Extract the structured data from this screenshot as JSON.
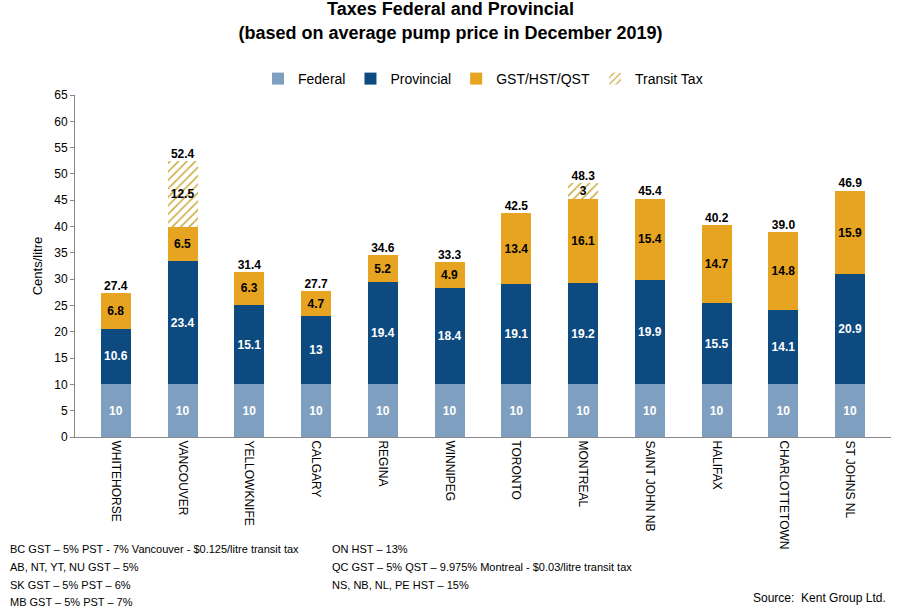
{
  "chart_data": {
    "type": "bar",
    "title": "Taxes Federal and Provincial",
    "subtitle": "(based on average pump price in December 2019)",
    "y_label": "Cents/litre",
    "categories": [
      "WHITEHORSE",
      "VANCOUVER",
      "YELLOWKNIFE",
      "CALGARY",
      "REGINA",
      "WINNIPEG",
      "TORONTO",
      "MONTREAL",
      "SAINT JOHN NB",
      "HALIFAX",
      "CHARLOTTETOWN",
      "ST JOHNS NL"
    ],
    "series": [
      {
        "name": "Federal",
        "color": "#7f9fc0",
        "values": [
          10,
          10,
          10,
          10,
          10,
          10,
          10,
          10,
          10,
          10,
          10,
          10
        ]
      },
      {
        "name": "Provincial",
        "color": "#0d4a80",
        "values": [
          10.6,
          23.4,
          15.1,
          13,
          19.4,
          18.4,
          19.1,
          19.2,
          19.9,
          15.5,
          14.1,
          20.9
        ]
      },
      {
        "name": "GST/HST/QST",
        "color": "#e6a420",
        "values": [
          6.8,
          6.5,
          6.3,
          4.7,
          5.2,
          4.9,
          13.4,
          16.1,
          15.4,
          14.7,
          14.8,
          15.9
        ]
      },
      {
        "name": "Transit Tax",
        "color": "#c9a93a",
        "marker": "hatch",
        "values": [
          null,
          12.5,
          null,
          null,
          null,
          null,
          null,
          3,
          null,
          null,
          null,
          null
        ]
      }
    ],
    "totals": {
      "values": [
        27.4,
        52.4,
        31.4,
        27.7,
        34.6,
        33.3,
        42.5,
        48.3,
        45.4,
        40.2,
        39.0,
        46.9
      ],
      "value_labels": [
        "27.4",
        "52.4",
        "31.4",
        "27.7",
        "34.6",
        "33.3",
        "42.5",
        "48.3",
        "45.4",
        "40.2",
        "39.0",
        "46.9"
      ]
    },
    "stacked": true,
    "data_labels": true,
    "legend": "top",
    "grid": false,
    "ylim": [
      0,
      65
    ],
    "yticks": [
      0,
      5,
      10,
      15,
      20,
      25,
      30,
      35,
      40,
      45,
      50,
      55,
      60,
      65
    ],
    "notes": [
      [
        "BC GST – 5% PST - 7% Vancouver - $0.125/litre transit tax",
        "AB, NT, YT, NU GST – 5%",
        "SK GST – 5% PST – 6%",
        "MB GST – 5% PST – 7%"
      ],
      [
        "ON HST – 13%",
        "QC GST – 5% QST – 9.975% Montreal - $0.03/litre transit tax",
        "NS, NB, NL, PE HST – 15%"
      ]
    ],
    "source": "Source:  Kent Group Ltd."
  }
}
